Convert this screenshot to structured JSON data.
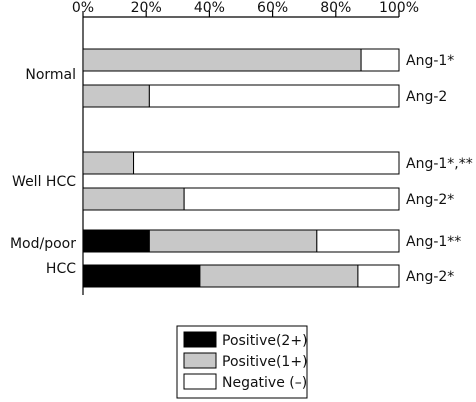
{
  "chart_data": {
    "type": "bar",
    "orientation": "horizontal",
    "stacked": true,
    "axis": {
      "xlim": [
        0,
        100
      ],
      "ticks": [
        0,
        20,
        40,
        60,
        80,
        100
      ],
      "tick_labels": [
        "0%",
        "20%",
        "40%",
        "60%",
        "80%",
        "100%"
      ],
      "position": "top"
    },
    "groups": [
      "Normal",
      "Well HCC",
      "Mod/poor HCC"
    ],
    "legend_position": "bottom-center",
    "series": [
      {
        "name": "Positive(2+)",
        "color": "#000000"
      },
      {
        "name": "Positive(1+)",
        "color": "#c8c8c8"
      },
      {
        "name": "Negative (–)",
        "color": "#ffffff"
      }
    ],
    "bars": [
      {
        "group": 0,
        "label": "Ang-1*",
        "values": [
          0,
          88,
          12
        ]
      },
      {
        "group": 0,
        "label": "Ang-2",
        "values": [
          0,
          21,
          79
        ]
      },
      {
        "group": 1,
        "label": "Ang-1*,**",
        "values": [
          0,
          16,
          84
        ]
      },
      {
        "group": 1,
        "label": "Ang-2*",
        "values": [
          0,
          32,
          68
        ]
      },
      {
        "group": 2,
        "label": "Ang-1**",
        "values": [
          21,
          53,
          26
        ]
      },
      {
        "group": 2,
        "label": "Ang-2*",
        "values": [
          37,
          50,
          13
        ]
      }
    ]
  }
}
